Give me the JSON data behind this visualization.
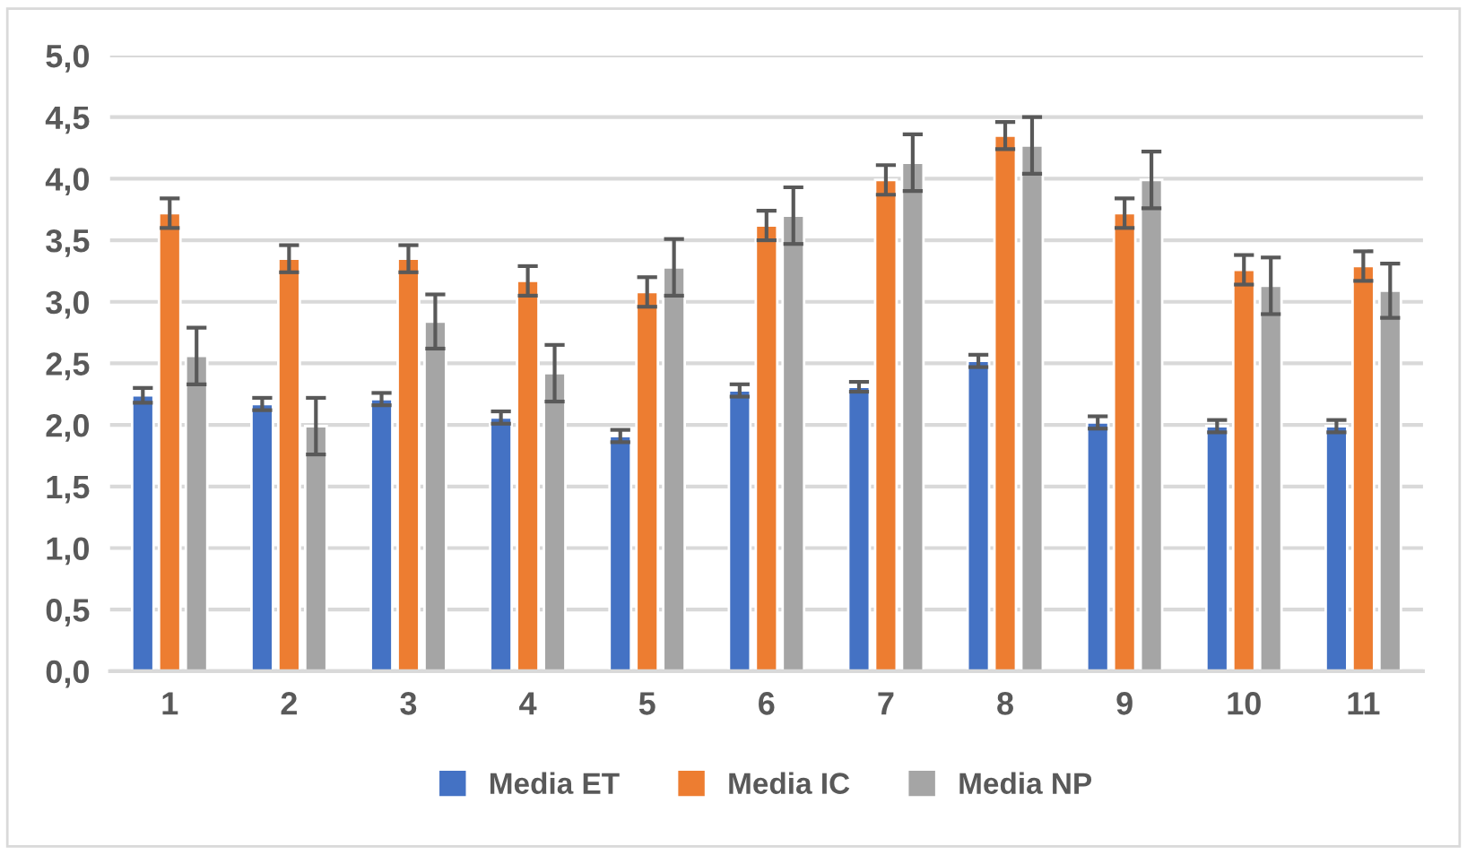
{
  "chart_data": {
    "type": "bar",
    "categories": [
      "1",
      "2",
      "3",
      "4",
      "5",
      "6",
      "7",
      "8",
      "9",
      "10",
      "11"
    ],
    "series": [
      {
        "name": "Media ET",
        "color": "#4472c4",
        "values": [
          2.24,
          2.17,
          2.21,
          2.06,
          1.91,
          2.28,
          2.31,
          2.52,
          2.02,
          1.99,
          1.99
        ],
        "errors": [
          0.06,
          0.05,
          0.05,
          0.05,
          0.05,
          0.05,
          0.04,
          0.05,
          0.05,
          0.05,
          0.05
        ]
      },
      {
        "name": "Media IC",
        "color": "#ed7d31",
        "values": [
          3.72,
          3.35,
          3.35,
          3.17,
          3.08,
          3.62,
          3.99,
          4.35,
          3.72,
          3.26,
          3.29
        ],
        "errors": [
          0.12,
          0.11,
          0.11,
          0.12,
          0.12,
          0.12,
          0.12,
          0.11,
          0.12,
          0.12,
          0.12
        ]
      },
      {
        "name": "Media NP",
        "color": "#a5a5a5",
        "values": [
          2.56,
          1.99,
          2.84,
          2.42,
          3.28,
          3.7,
          4.13,
          4.27,
          3.99,
          3.13,
          3.09
        ],
        "errors": [
          0.23,
          0.23,
          0.22,
          0.23,
          0.23,
          0.23,
          0.23,
          0.23,
          0.23,
          0.23,
          0.22
        ]
      }
    ],
    "ylim": [
      0,
      5
    ],
    "yticks": [
      {
        "value": 0,
        "label": "0,0"
      },
      {
        "value": 0.5,
        "label": "0,5"
      },
      {
        "value": 1,
        "label": "1,0"
      },
      {
        "value": 1.5,
        "label": "1,5"
      },
      {
        "value": 2,
        "label": "2,0"
      },
      {
        "value": 2.5,
        "label": "2,5"
      },
      {
        "value": 3,
        "label": "3,0"
      },
      {
        "value": 3.5,
        "label": "3,5"
      },
      {
        "value": 4,
        "label": "4,0"
      },
      {
        "value": 4.5,
        "label": "4,5"
      },
      {
        "value": 5,
        "label": "5,0"
      }
    ],
    "grid": "y",
    "legend": "bottom"
  }
}
